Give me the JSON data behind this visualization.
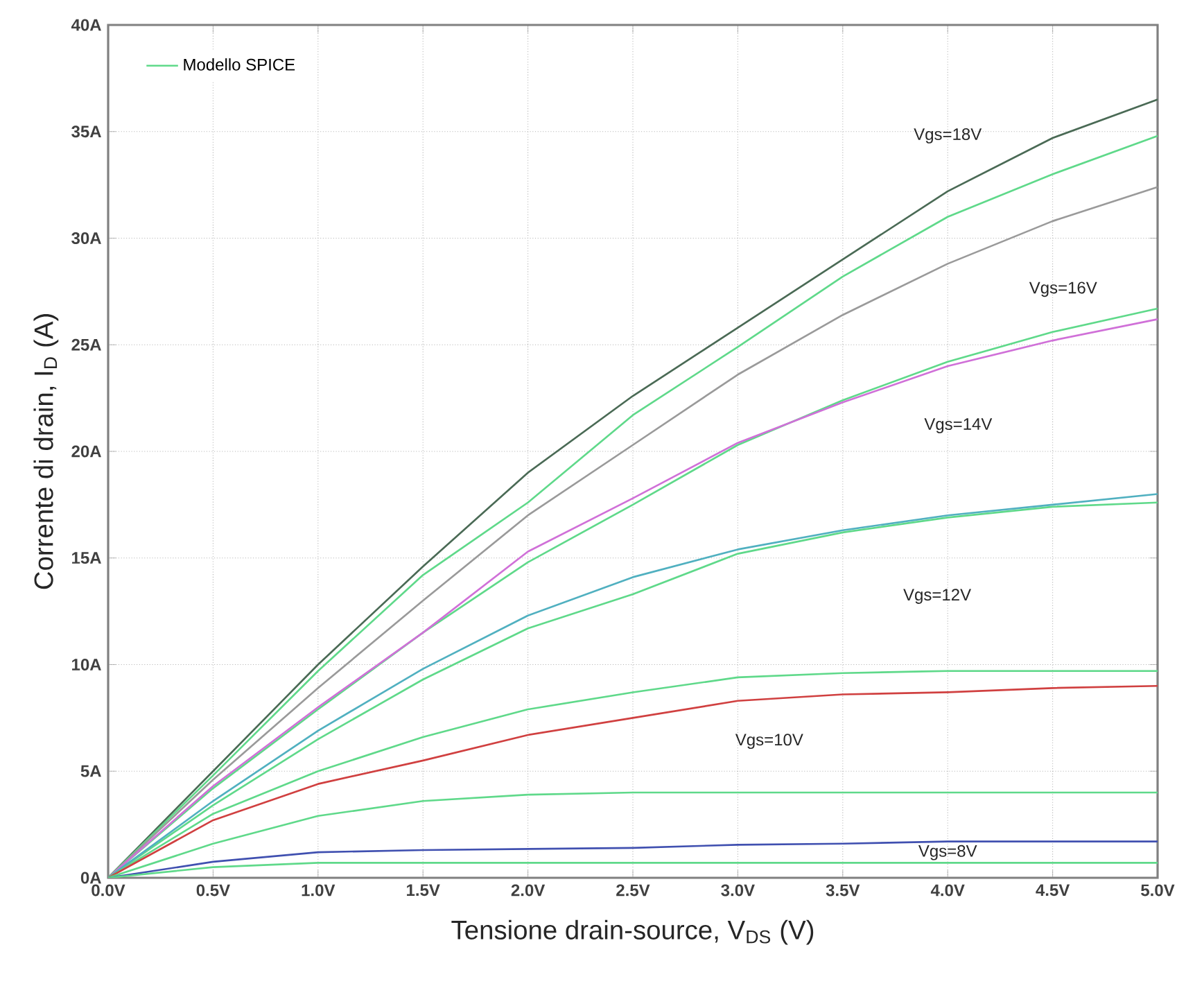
{
  "chart_data": {
    "type": "line",
    "xlabel": "Tensione drain-source, V$_{DS}$ (V)",
    "ylabel": "Corrente di drain, I$_{D}$ (A)",
    "x": [
      0,
      0.5,
      1,
      1.5,
      2,
      2.5,
      3,
      3.5,
      4,
      4.5,
      5
    ],
    "series": [
      {
        "color": "#4a6a55",
        "values": [
          0,
          5.0,
          10.0,
          14.6,
          19.0,
          22.6,
          25.8,
          29.0,
          32.2,
          34.7,
          36.5
        ]
      },
      {
        "name": "Modello SPICE",
        "color": "#5fd98a",
        "values": [
          0,
          4.8,
          9.7,
          14.2,
          17.6,
          21.7,
          24.9,
          28.2,
          31.0,
          33.0,
          34.8
        ]
      },
      {
        "color": "#9a9a9a",
        "values": [
          0,
          4.6,
          8.9,
          13.0,
          17.0,
          20.3,
          23.6,
          26.4,
          28.8,
          30.8,
          32.4
        ]
      },
      {
        "color": "#5fd98a",
        "values": [
          0,
          4.2,
          7.9,
          11.5,
          14.8,
          17.5,
          20.3,
          22.4,
          24.2,
          25.6,
          26.7
        ]
      },
      {
        "color": "#d070d8",
        "values": [
          0,
          4.3,
          8.0,
          11.5,
          15.3,
          17.8,
          20.4,
          22.3,
          24.0,
          25.2,
          26.2
        ]
      },
      {
        "color": "#5fd98a",
        "values": [
          0,
          3.4,
          6.5,
          9.3,
          11.7,
          13.3,
          15.2,
          16.2,
          16.9,
          17.4,
          17.6
        ]
      },
      {
        "color": "#50b0c0",
        "values": [
          0,
          3.6,
          6.9,
          9.8,
          12.3,
          14.1,
          15.4,
          16.3,
          17.0,
          17.5,
          18.0
        ]
      },
      {
        "color": "#5fd98a",
        "values": [
          0,
          3.0,
          5.0,
          6.6,
          7.9,
          8.7,
          9.4,
          9.6,
          9.7,
          9.7,
          9.7
        ]
      },
      {
        "color": "#d04040",
        "values": [
          0,
          2.7,
          4.4,
          5.5,
          6.7,
          7.5,
          8.3,
          8.6,
          8.7,
          8.9,
          9.0
        ]
      },
      {
        "color": "#5fd98a",
        "values": [
          0,
          1.6,
          2.9,
          3.6,
          3.9,
          4.0,
          4.0,
          4.0,
          4.0,
          4.0,
          4.0
        ]
      },
      {
        "color": "#4050b0",
        "values": [
          0,
          0.75,
          1.2,
          1.3,
          1.35,
          1.4,
          1.55,
          1.6,
          1.7,
          1.7,
          1.7
        ]
      },
      {
        "color": "#5fd98a",
        "values": [
          0,
          0.5,
          0.7,
          0.7,
          0.7,
          0.7,
          0.7,
          0.7,
          0.7,
          0.7,
          0.7
        ]
      }
    ],
    "xlim": [
      0,
      5
    ],
    "ylim": [
      0,
      40
    ],
    "xticks": [
      {
        "value": 0,
        "label": "0.0V"
      },
      {
        "value": 0.5,
        "label": "0.5V"
      },
      {
        "value": 1,
        "label": "1.0V"
      },
      {
        "value": 1.5,
        "label": "1.5V"
      },
      {
        "value": 2,
        "label": "2.0V"
      },
      {
        "value": 2.5,
        "label": "2.5V"
      },
      {
        "value": 3,
        "label": "3.0V"
      },
      {
        "value": 3.5,
        "label": "3.5V"
      },
      {
        "value": 4,
        "label": "4.0V"
      },
      {
        "value": 4.5,
        "label": "4.5V"
      },
      {
        "value": 5,
        "label": "5.0V"
      }
    ],
    "yticks": [
      {
        "value": 0,
        "label": "0A"
      },
      {
        "value": 5,
        "label": "5A"
      },
      {
        "value": 10,
        "label": "10A"
      },
      {
        "value": 15,
        "label": "15A"
      },
      {
        "value": 20,
        "label": "20A"
      },
      {
        "value": 25,
        "label": "25A"
      },
      {
        "value": 30,
        "label": "30A"
      },
      {
        "value": 35,
        "label": "35A"
      },
      {
        "value": 40,
        "label": "40A"
      }
    ],
    "annotations": [
      "Vgs=18V",
      "Vgs=16V",
      "Vgs=14V",
      "Vgs=12V",
      "Vgs=10V",
      "Vgs=8V"
    ],
    "grid": true,
    "legend": "top left",
    "marker": "none",
    "line_style": "solid"
  }
}
